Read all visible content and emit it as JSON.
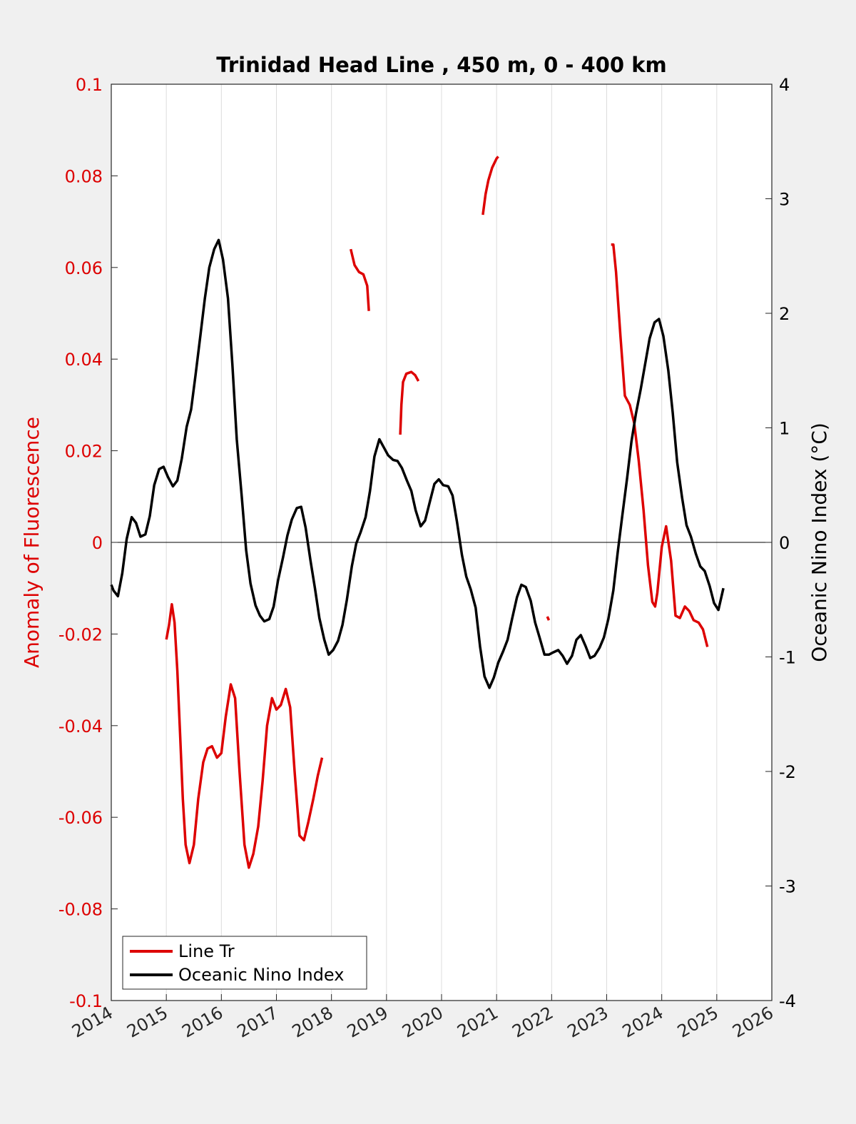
{
  "chart_data": {
    "type": "line",
    "title": "Trinidad Head Line , 450 m, 0 - 400 km",
    "xlabel": "",
    "xlim": [
      2014,
      2026
    ],
    "xticks": [
      "2014",
      "2015",
      "2016",
      "2017",
      "2018",
      "2019",
      "2020",
      "2021",
      "2022",
      "2023",
      "2024",
      "2025",
      "2026"
    ],
    "grid": true,
    "legend_position": "bottom-left",
    "left_axis": {
      "label": "Anomaly of Fluorescence",
      "color": "#dd0000",
      "ylim": [
        -0.1,
        0.1
      ],
      "ticks": [
        "0.1",
        "0.08",
        "0.06",
        "0.04",
        "0.02",
        "0",
        "-0.02",
        "-0.04",
        "-0.06",
        "-0.08",
        "-0.1"
      ]
    },
    "right_axis": {
      "label": "Oceanic Nino Index (°C)",
      "color": "#000000",
      "ylim": [
        -4,
        4
      ],
      "ticks": [
        "4",
        "3",
        "2",
        "1",
        "0",
        "-1",
        "-2",
        "-3",
        "-4"
      ]
    },
    "series": [
      {
        "name": "Line Tr",
        "axis": "left",
        "color": "#dd0000",
        "segments": [
          [
            [
              2015.0,
              -0.0212
            ],
            [
              2015.05,
              -0.018
            ],
            [
              2015.1,
              -0.0135
            ],
            [
              2015.15,
              -0.0175
            ],
            [
              2015.2,
              -0.028
            ],
            [
              2015.25,
              -0.042
            ],
            [
              2015.3,
              -0.056
            ],
            [
              2015.35,
              -0.066
            ],
            [
              2015.42,
              -0.07
            ],
            [
              2015.5,
              -0.066
            ],
            [
              2015.58,
              -0.056
            ],
            [
              2015.67,
              -0.048
            ],
            [
              2015.75,
              -0.045
            ],
            [
              2015.83,
              -0.0445
            ],
            [
              2015.92,
              -0.047
            ],
            [
              2016.0,
              -0.046
            ],
            [
              2016.08,
              -0.038
            ],
            [
              2016.17,
              -0.031
            ],
            [
              2016.25,
              -0.034
            ],
            [
              2016.33,
              -0.05
            ],
            [
              2016.42,
              -0.066
            ],
            [
              2016.5,
              -0.071
            ],
            [
              2016.58,
              -0.068
            ],
            [
              2016.67,
              -0.062
            ],
            [
              2016.75,
              -0.052
            ],
            [
              2016.83,
              -0.04
            ],
            [
              2016.92,
              -0.034
            ],
            [
              2017.0,
              -0.0365
            ],
            [
              2017.08,
              -0.0355
            ],
            [
              2017.17,
              -0.032
            ],
            [
              2017.25,
              -0.036
            ],
            [
              2017.33,
              -0.05
            ],
            [
              2017.42,
              -0.064
            ],
            [
              2017.5,
              -0.065
            ],
            [
              2017.58,
              -0.061
            ],
            [
              2017.67,
              -0.056
            ],
            [
              2017.75,
              -0.051
            ],
            [
              2017.83,
              -0.047
            ]
          ],
          [
            [
              2018.35,
              0.064
            ],
            [
              2018.42,
              0.0605
            ],
            [
              2018.5,
              0.059
            ],
            [
              2018.58,
              0.0585
            ],
            [
              2018.65,
              0.056
            ],
            [
              2018.68,
              0.0505
            ]
          ],
          [
            [
              2019.25,
              0.0235
            ],
            [
              2019.27,
              0.03
            ],
            [
              2019.3,
              0.035
            ],
            [
              2019.36,
              0.0368
            ],
            [
              2019.45,
              0.0372
            ],
            [
              2019.52,
              0.0365
            ],
            [
              2019.58,
              0.0352
            ]
          ],
          [
            [
              2020.75,
              0.0715
            ],
            [
              2020.8,
              0.076
            ],
            [
              2020.85,
              0.079
            ],
            [
              2020.92,
              0.0818
            ],
            [
              2021.0,
              0.0838
            ],
            [
              2021.03,
              0.0842
            ]
          ],
          [
            [
              2021.92,
              -0.0162
            ],
            [
              2021.95,
              -0.017
            ]
          ],
          [
            [
              2023.08,
              0.065
            ],
            [
              2023.12,
              0.065
            ],
            [
              2023.17,
              0.059
            ],
            [
              2023.25,
              0.045
            ],
            [
              2023.33,
              0.032
            ],
            [
              2023.42,
              0.03
            ],
            [
              2023.5,
              0.026
            ],
            [
              2023.58,
              0.018
            ],
            [
              2023.67,
              0.007
            ],
            [
              2023.75,
              -0.005
            ],
            [
              2023.83,
              -0.013
            ],
            [
              2023.88,
              -0.014
            ],
            [
              2023.92,
              -0.011
            ],
            [
              2024.0,
              -0.001
            ],
            [
              2024.08,
              0.0035
            ],
            [
              2024.17,
              -0.004
            ],
            [
              2024.25,
              -0.016
            ],
            [
              2024.33,
              -0.0165
            ],
            [
              2024.42,
              -0.014
            ],
            [
              2024.5,
              -0.015
            ],
            [
              2024.58,
              -0.017
            ],
            [
              2024.67,
              -0.0175
            ],
            [
              2024.75,
              -0.019
            ],
            [
              2024.83,
              -0.0228
            ]
          ]
        ]
      },
      {
        "name": "Oceanic Nino Index",
        "axis": "right",
        "color": "#000000",
        "segments": [
          [
            [
              2014.0,
              -0.37
            ],
            [
              2014.04,
              -0.42
            ],
            [
              2014.12,
              -0.47
            ],
            [
              2014.2,
              -0.27
            ],
            [
              2014.28,
              0.03
            ],
            [
              2014.37,
              0.22
            ],
            [
              2014.45,
              0.17
            ],
            [
              2014.53,
              0.05
            ],
            [
              2014.62,
              0.07
            ],
            [
              2014.7,
              0.23
            ],
            [
              2014.78,
              0.5
            ],
            [
              2014.87,
              0.64
            ],
            [
              2014.95,
              0.66
            ],
            [
              2015.03,
              0.57
            ],
            [
              2015.12,
              0.49
            ],
            [
              2015.2,
              0.54
            ],
            [
              2015.28,
              0.73
            ],
            [
              2015.37,
              1.01
            ],
            [
              2015.45,
              1.16
            ],
            [
              2015.53,
              1.46
            ],
            [
              2015.62,
              1.81
            ],
            [
              2015.7,
              2.13
            ],
            [
              2015.78,
              2.4
            ],
            [
              2015.87,
              2.56
            ],
            [
              2015.95,
              2.64
            ],
            [
              2016.03,
              2.47
            ],
            [
              2016.12,
              2.13
            ],
            [
              2016.2,
              1.55
            ],
            [
              2016.28,
              0.9
            ],
            [
              2016.37,
              0.4
            ],
            [
              2016.45,
              -0.07
            ],
            [
              2016.53,
              -0.36
            ],
            [
              2016.62,
              -0.55
            ],
            [
              2016.7,
              -0.64
            ],
            [
              2016.78,
              -0.69
            ],
            [
              2016.87,
              -0.67
            ],
            [
              2016.95,
              -0.56
            ],
            [
              2017.03,
              -0.33
            ],
            [
              2017.12,
              -0.13
            ],
            [
              2017.2,
              0.06
            ],
            [
              2017.28,
              0.2
            ],
            [
              2017.37,
              0.3
            ],
            [
              2017.45,
              0.31
            ],
            [
              2017.53,
              0.13
            ],
            [
              2017.62,
              -0.16
            ],
            [
              2017.7,
              -0.4
            ],
            [
              2017.78,
              -0.66
            ],
            [
              2017.87,
              -0.85
            ],
            [
              2017.95,
              -0.98
            ],
            [
              2018.03,
              -0.94
            ],
            [
              2018.12,
              -0.86
            ],
            [
              2018.2,
              -0.72
            ],
            [
              2018.28,
              -0.5
            ],
            [
              2018.37,
              -0.21
            ],
            [
              2018.45,
              -0.01
            ],
            [
              2018.53,
              0.09
            ],
            [
              2018.62,
              0.22
            ],
            [
              2018.7,
              0.45
            ],
            [
              2018.78,
              0.75
            ],
            [
              2018.87,
              0.9
            ],
            [
              2018.95,
              0.83
            ],
            [
              2019.03,
              0.76
            ],
            [
              2019.12,
              0.72
            ],
            [
              2019.2,
              0.71
            ],
            [
              2019.28,
              0.65
            ],
            [
              2019.37,
              0.54
            ],
            [
              2019.45,
              0.45
            ],
            [
              2019.53,
              0.28
            ],
            [
              2019.62,
              0.14
            ],
            [
              2019.7,
              0.19
            ],
            [
              2019.78,
              0.34
            ],
            [
              2019.87,
              0.51
            ],
            [
              2019.95,
              0.55
            ],
            [
              2020.03,
              0.5
            ],
            [
              2020.12,
              0.49
            ],
            [
              2020.2,
              0.41
            ],
            [
              2020.28,
              0.18
            ],
            [
              2020.37,
              -0.11
            ],
            [
              2020.45,
              -0.3
            ],
            [
              2020.53,
              -0.41
            ],
            [
              2020.62,
              -0.57
            ],
            [
              2020.7,
              -0.91
            ],
            [
              2020.78,
              -1.17
            ],
            [
              2020.87,
              -1.27
            ],
            [
              2020.95,
              -1.18
            ],
            [
              2021.03,
              -1.05
            ],
            [
              2021.12,
              -0.95
            ],
            [
              2021.2,
              -0.85
            ],
            [
              2021.28,
              -0.67
            ],
            [
              2021.37,
              -0.48
            ],
            [
              2021.45,
              -0.37
            ],
            [
              2021.53,
              -0.39
            ],
            [
              2021.62,
              -0.51
            ],
            [
              2021.7,
              -0.7
            ],
            [
              2021.78,
              -0.83
            ],
            [
              2021.87,
              -0.98
            ],
            [
              2021.95,
              -0.98
            ],
            [
              2022.03,
              -0.96
            ],
            [
              2022.12,
              -0.94
            ],
            [
              2022.2,
              -0.99
            ],
            [
              2022.28,
              -1.06
            ],
            [
              2022.37,
              -0.99
            ],
            [
              2022.45,
              -0.85
            ],
            [
              2022.53,
              -0.81
            ],
            [
              2022.62,
              -0.91
            ],
            [
              2022.7,
              -1.01
            ],
            [
              2022.78,
              -0.99
            ],
            [
              2022.87,
              -0.92
            ],
            [
              2022.95,
              -0.83
            ],
            [
              2023.03,
              -0.67
            ],
            [
              2023.12,
              -0.42
            ],
            [
              2023.2,
              -0.09
            ],
            [
              2023.28,
              0.22
            ],
            [
              2023.37,
              0.56
            ],
            [
              2023.45,
              0.88
            ],
            [
              2023.53,
              1.12
            ],
            [
              2023.62,
              1.34
            ],
            [
              2023.7,
              1.56
            ],
            [
              2023.78,
              1.78
            ],
            [
              2023.87,
              1.92
            ],
            [
              2023.95,
              1.95
            ],
            [
              2024.03,
              1.8
            ],
            [
              2024.12,
              1.5
            ],
            [
              2024.2,
              1.13
            ],
            [
              2024.28,
              0.7
            ],
            [
              2024.37,
              0.39
            ],
            [
              2024.45,
              0.15
            ],
            [
              2024.53,
              0.05
            ],
            [
              2024.62,
              -0.1
            ],
            [
              2024.7,
              -0.21
            ],
            [
              2024.78,
              -0.25
            ],
            [
              2024.87,
              -0.38
            ],
            [
              2024.95,
              -0.53
            ],
            [
              2025.03,
              -0.59
            ],
            [
              2025.12,
              -0.4
            ]
          ]
        ]
      }
    ]
  }
}
